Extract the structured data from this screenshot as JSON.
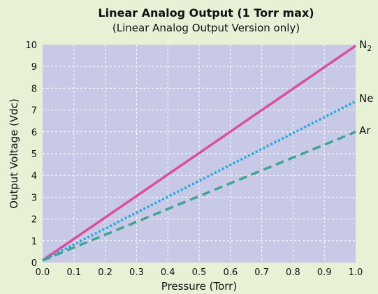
{
  "chart_data": {
    "type": "line",
    "title": "Linear Analog Output (1 Torr max)",
    "subtitle": "(Linear Analog Output Version only)",
    "xlabel": "Pressure (Torr)",
    "ylabel": "Output Voltage (Vdc)",
    "xlim": [
      0,
      1.0
    ],
    "ylim": [
      0,
      10
    ],
    "x_ticks": [
      "0.0",
      "0.1",
      "0.2",
      "0.3",
      "0.4",
      "0.5",
      "0.6",
      "0.7",
      "0.8",
      "0.9",
      "1.0"
    ],
    "y_ticks": [
      "0",
      "1",
      "2",
      "3",
      "4",
      "5",
      "6",
      "7",
      "8",
      "9",
      "10"
    ],
    "grid": true,
    "plot_background": "#c8c9e6",
    "page_background": "#e6f1d6",
    "series": [
      {
        "name": "N2",
        "label_main": "N",
        "label_sub": "2",
        "color": "#d94f9c",
        "style": "solid",
        "x": [
          0,
          1.0
        ],
        "y": [
          0.1,
          9.95
        ]
      },
      {
        "name": "Ne",
        "label_main": "Ne",
        "label_sub": "",
        "color": "#1ea9e1",
        "style": "dotted",
        "x": [
          0,
          1.0
        ],
        "y": [
          0.1,
          7.4
        ]
      },
      {
        "name": "Ar",
        "label_main": "Ar",
        "label_sub": "",
        "color": "#3fa58f",
        "style": "dashed",
        "x": [
          0,
          1.0
        ],
        "y": [
          0.1,
          6.0
        ]
      }
    ]
  }
}
